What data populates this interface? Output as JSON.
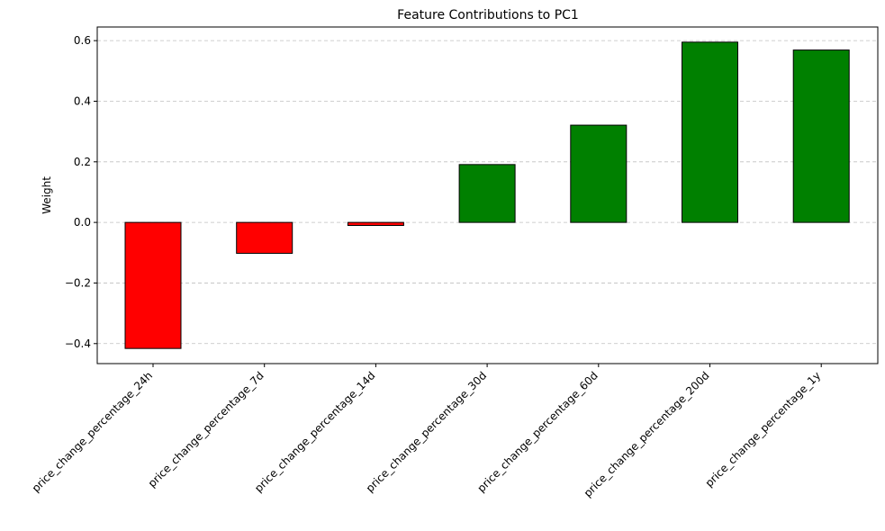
{
  "chart_data": {
    "type": "bar",
    "title": "Feature Contributions to PC1",
    "xlabel": "",
    "ylabel": "Weight",
    "categories": [
      "price_change_percentage_24h",
      "price_change_percentage_7d",
      "price_change_percentage_14d",
      "price_change_percentage_30d",
      "price_change_percentage_60d",
      "price_change_percentage_200d",
      "price_change_percentage_1y"
    ],
    "values": [
      -0.416,
      -0.102,
      -0.01,
      0.191,
      0.321,
      0.595,
      0.569
    ],
    "ylim": [
      -0.466,
      0.645
    ],
    "yticks": [
      -0.4,
      -0.2,
      0.0,
      0.2,
      0.4,
      0.6
    ],
    "ytick_labels": [
      "−0.4",
      "−0.2",
      "0.0",
      "0.2",
      "0.4",
      "0.6"
    ],
    "grid": "y-dashed",
    "colors": {
      "positive": "#008000",
      "negative": "#ff0000",
      "edge": "#000000"
    }
  }
}
